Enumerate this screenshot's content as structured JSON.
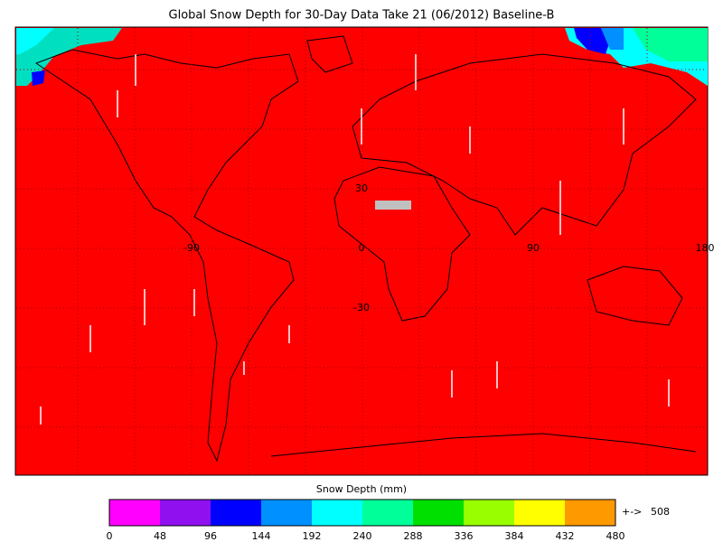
{
  "title": "Global Snow Depth for 30-Day Data Take 21 (06/2012) Baseline-B",
  "map": {
    "lat_labels": [
      "30",
      "0",
      "-30"
    ],
    "lon_labels": [
      "-90",
      "90",
      "180"
    ]
  },
  "colorbar": {
    "label": "Snow Depth (mm)",
    "ticks": [
      "0",
      "48",
      "96",
      "144",
      "192",
      "240",
      "288",
      "336",
      "384",
      "432",
      "480"
    ],
    "colors": [
      "#ff00ff",
      "#9010f0",
      "#0000ff",
      "#0090ff",
      "#00ffff",
      "#00ff99",
      "#00e000",
      "#99ff00",
      "#ffff00",
      "#ff9900"
    ],
    "overflow_arrow": "+->",
    "overflow_value": "508",
    "overflow_color": "#ff9900"
  }
}
